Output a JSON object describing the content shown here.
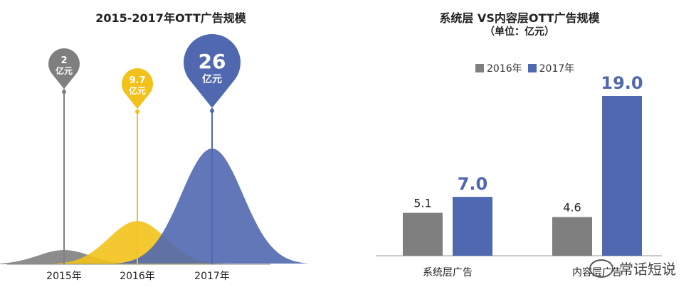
{
  "chart_data": [
    {
      "type": "area",
      "title": "2015-2017年OTT广告规模",
      "categories": [
        "2015年",
        "2016年",
        "2017年"
      ],
      "values": [
        2,
        9.7,
        26
      ],
      "value_labels": [
        {
          "value": "2",
          "unit": "亿元"
        },
        {
          "value": "9.7",
          "unit": "亿元"
        },
        {
          "value": "26",
          "unit": "亿元"
        }
      ],
      "colors": [
        "#7f7f7f",
        "#f2c21b",
        "#5068b0"
      ]
    },
    {
      "type": "bar",
      "title": "系统层 VS内容层OTT广告规模",
      "subtitle": "（单位：亿元）",
      "categories": [
        "系统层广告",
        "内容层广告"
      ],
      "series": [
        {
          "name": "2016年",
          "values": [
            5.1,
            4.6
          ],
          "color": "#7f7f7f"
        },
        {
          "name": "2017年",
          "values": [
            7.0,
            19.0
          ],
          "color": "#5068b0"
        }
      ],
      "data_labels": [
        [
          "5.1",
          "4.6"
        ],
        [
          "7.0",
          "19.0"
        ]
      ],
      "ylim": [
        0,
        20
      ],
      "legend_position": "top"
    }
  ],
  "watermark": {
    "text": "常话短说"
  }
}
